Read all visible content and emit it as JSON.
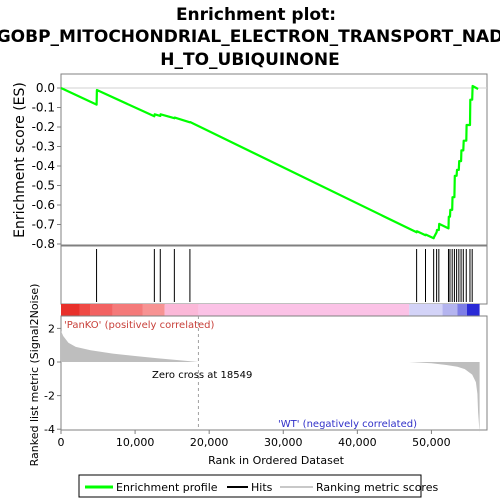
{
  "chart_data": [
    {
      "type": "line",
      "title_lines": [
        "Enrichment plot:",
        "GOBP_MITOCHONDRIAL_ELECTRON_TRANSPORT_NAD",
        "H_TO_UBIQUINONE"
      ],
      "ylabel": "Enrichment score (ES)",
      "ylim": [
        -0.8,
        0.05
      ],
      "xlim": [
        0,
        57500
      ],
      "yticks": [
        "0.0",
        "-0.1",
        "-0.2",
        "-0.3",
        "-0.4",
        "-0.5",
        "-0.6",
        "-0.7",
        "-0.8"
      ],
      "ytick_values": [
        0.0,
        -0.1,
        -0.2,
        -0.3,
        -0.4,
        -0.5,
        -0.6,
        -0.7,
        -0.8
      ],
      "series": [
        {
          "name": "Enrichment profile",
          "color": "#00ff00",
          "x": [
            0,
            4800,
            4850,
            12600,
            12650,
            13400,
            13450,
            15300,
            15350,
            17400,
            17450,
            48000,
            48050,
            49200,
            49250,
            50300,
            50350,
            50700,
            50750,
            51000,
            51050,
            52300,
            52350,
            52500,
            52550,
            52800,
            52850,
            53100,
            53150,
            53400,
            53450,
            53700,
            53750,
            54000,
            54050,
            54300,
            54350,
            54700,
            54750,
            55200,
            55250,
            55500,
            55550,
            56300
          ],
          "y": [
            0.0,
            -0.085,
            -0.01,
            -0.145,
            -0.135,
            -0.143,
            -0.135,
            -0.155,
            -0.152,
            -0.176,
            -0.175,
            -0.74,
            -0.735,
            -0.755,
            -0.752,
            -0.77,
            -0.765,
            -0.74,
            -0.728,
            -0.728,
            -0.697,
            -0.72,
            -0.66,
            -0.66,
            -0.625,
            -0.625,
            -0.56,
            -0.56,
            -0.45,
            -0.45,
            -0.42,
            -0.42,
            -0.375,
            -0.375,
            -0.32,
            -0.32,
            -0.27,
            -0.27,
            -0.19,
            -0.19,
            -0.06,
            -0.06,
            0.01,
            -0.005
          ]
        }
      ]
    },
    {
      "type": "hits",
      "series": [
        {
          "name": "Hits",
          "color": "#000000",
          "x": [
            4800,
            12600,
            13400,
            15300,
            17400,
            48000,
            49200,
            50300,
            50700,
            51000,
            52300,
            52500,
            52800,
            53100,
            53400,
            53700,
            54000,
            54300,
            54700,
            55200,
            55500
          ]
        }
      ]
    },
    {
      "type": "heatmap",
      "xlim": [
        0,
        57500
      ],
      "label_pos": "'PanKO' (positively correlated)",
      "label_neg": "'WT' (negatively correlated)",
      "segments": [
        {
          "x0": 0,
          "x1": 2500,
          "color": "#e8302a"
        },
        {
          "x0": 2500,
          "x1": 4000,
          "color": "#ef4a45"
        },
        {
          "x0": 4000,
          "x1": 7000,
          "color": "#f26262"
        },
        {
          "x0": 7000,
          "x1": 11000,
          "color": "#f47a7a"
        },
        {
          "x0": 11000,
          "x1": 14000,
          "color": "#f79393"
        },
        {
          "x0": 14000,
          "x1": 18549,
          "color": "#fbb8d8"
        },
        {
          "x0": 18549,
          "x1": 47000,
          "color": "#fbc2e6"
        },
        {
          "x0": 47000,
          "x1": 51500,
          "color": "#d3d3f7"
        },
        {
          "x0": 51500,
          "x1": 53500,
          "color": "#b4b4ef"
        },
        {
          "x0": 53500,
          "x1": 54800,
          "color": "#7e7ee6"
        },
        {
          "x0": 54800,
          "x1": 56500,
          "color": "#2a2ad6"
        }
      ]
    },
    {
      "type": "area",
      "ylabel": "Ranked list metric (Signal2Noise)",
      "xlabel": "Rank in Ordered Dataset",
      "ylim": [
        -4.5,
        2.6
      ],
      "yticks": [
        "2",
        "0",
        "-2",
        "-4"
      ],
      "ytick_values": [
        2,
        0,
        -2,
        -4
      ],
      "xticks": [
        "0",
        "10,000",
        "20,000",
        "30,000",
        "40,000",
        "50,000"
      ],
      "xtick_values": [
        0,
        10000,
        20000,
        30000,
        40000,
        50000
      ],
      "annotation": "Zero cross at 18549",
      "zero_cross": 18549,
      "fill_color": "#bebebe",
      "x": [
        0,
        300,
        1000,
        2000,
        4000,
        7000,
        10000,
        13000,
        16000,
        18549,
        47000,
        50000,
        52000,
        53500,
        54500,
        55500,
        56000,
        56200,
        56300,
        56500
      ],
      "y": [
        1.85,
        1.55,
        1.15,
        0.9,
        0.7,
        0.5,
        0.36,
        0.22,
        0.1,
        0.0,
        0.0,
        -0.08,
        -0.18,
        -0.28,
        -0.42,
        -0.75,
        -1.2,
        -1.9,
        -3.0,
        -4.2
      ]
    }
  ],
  "legend": {
    "items": [
      {
        "label": "Enrichment profile",
        "color": "#00ff00"
      },
      {
        "label": "Hits",
        "color": "#000000"
      },
      {
        "label": "Ranking metric scores",
        "color": "#c0c0c0"
      }
    ]
  }
}
